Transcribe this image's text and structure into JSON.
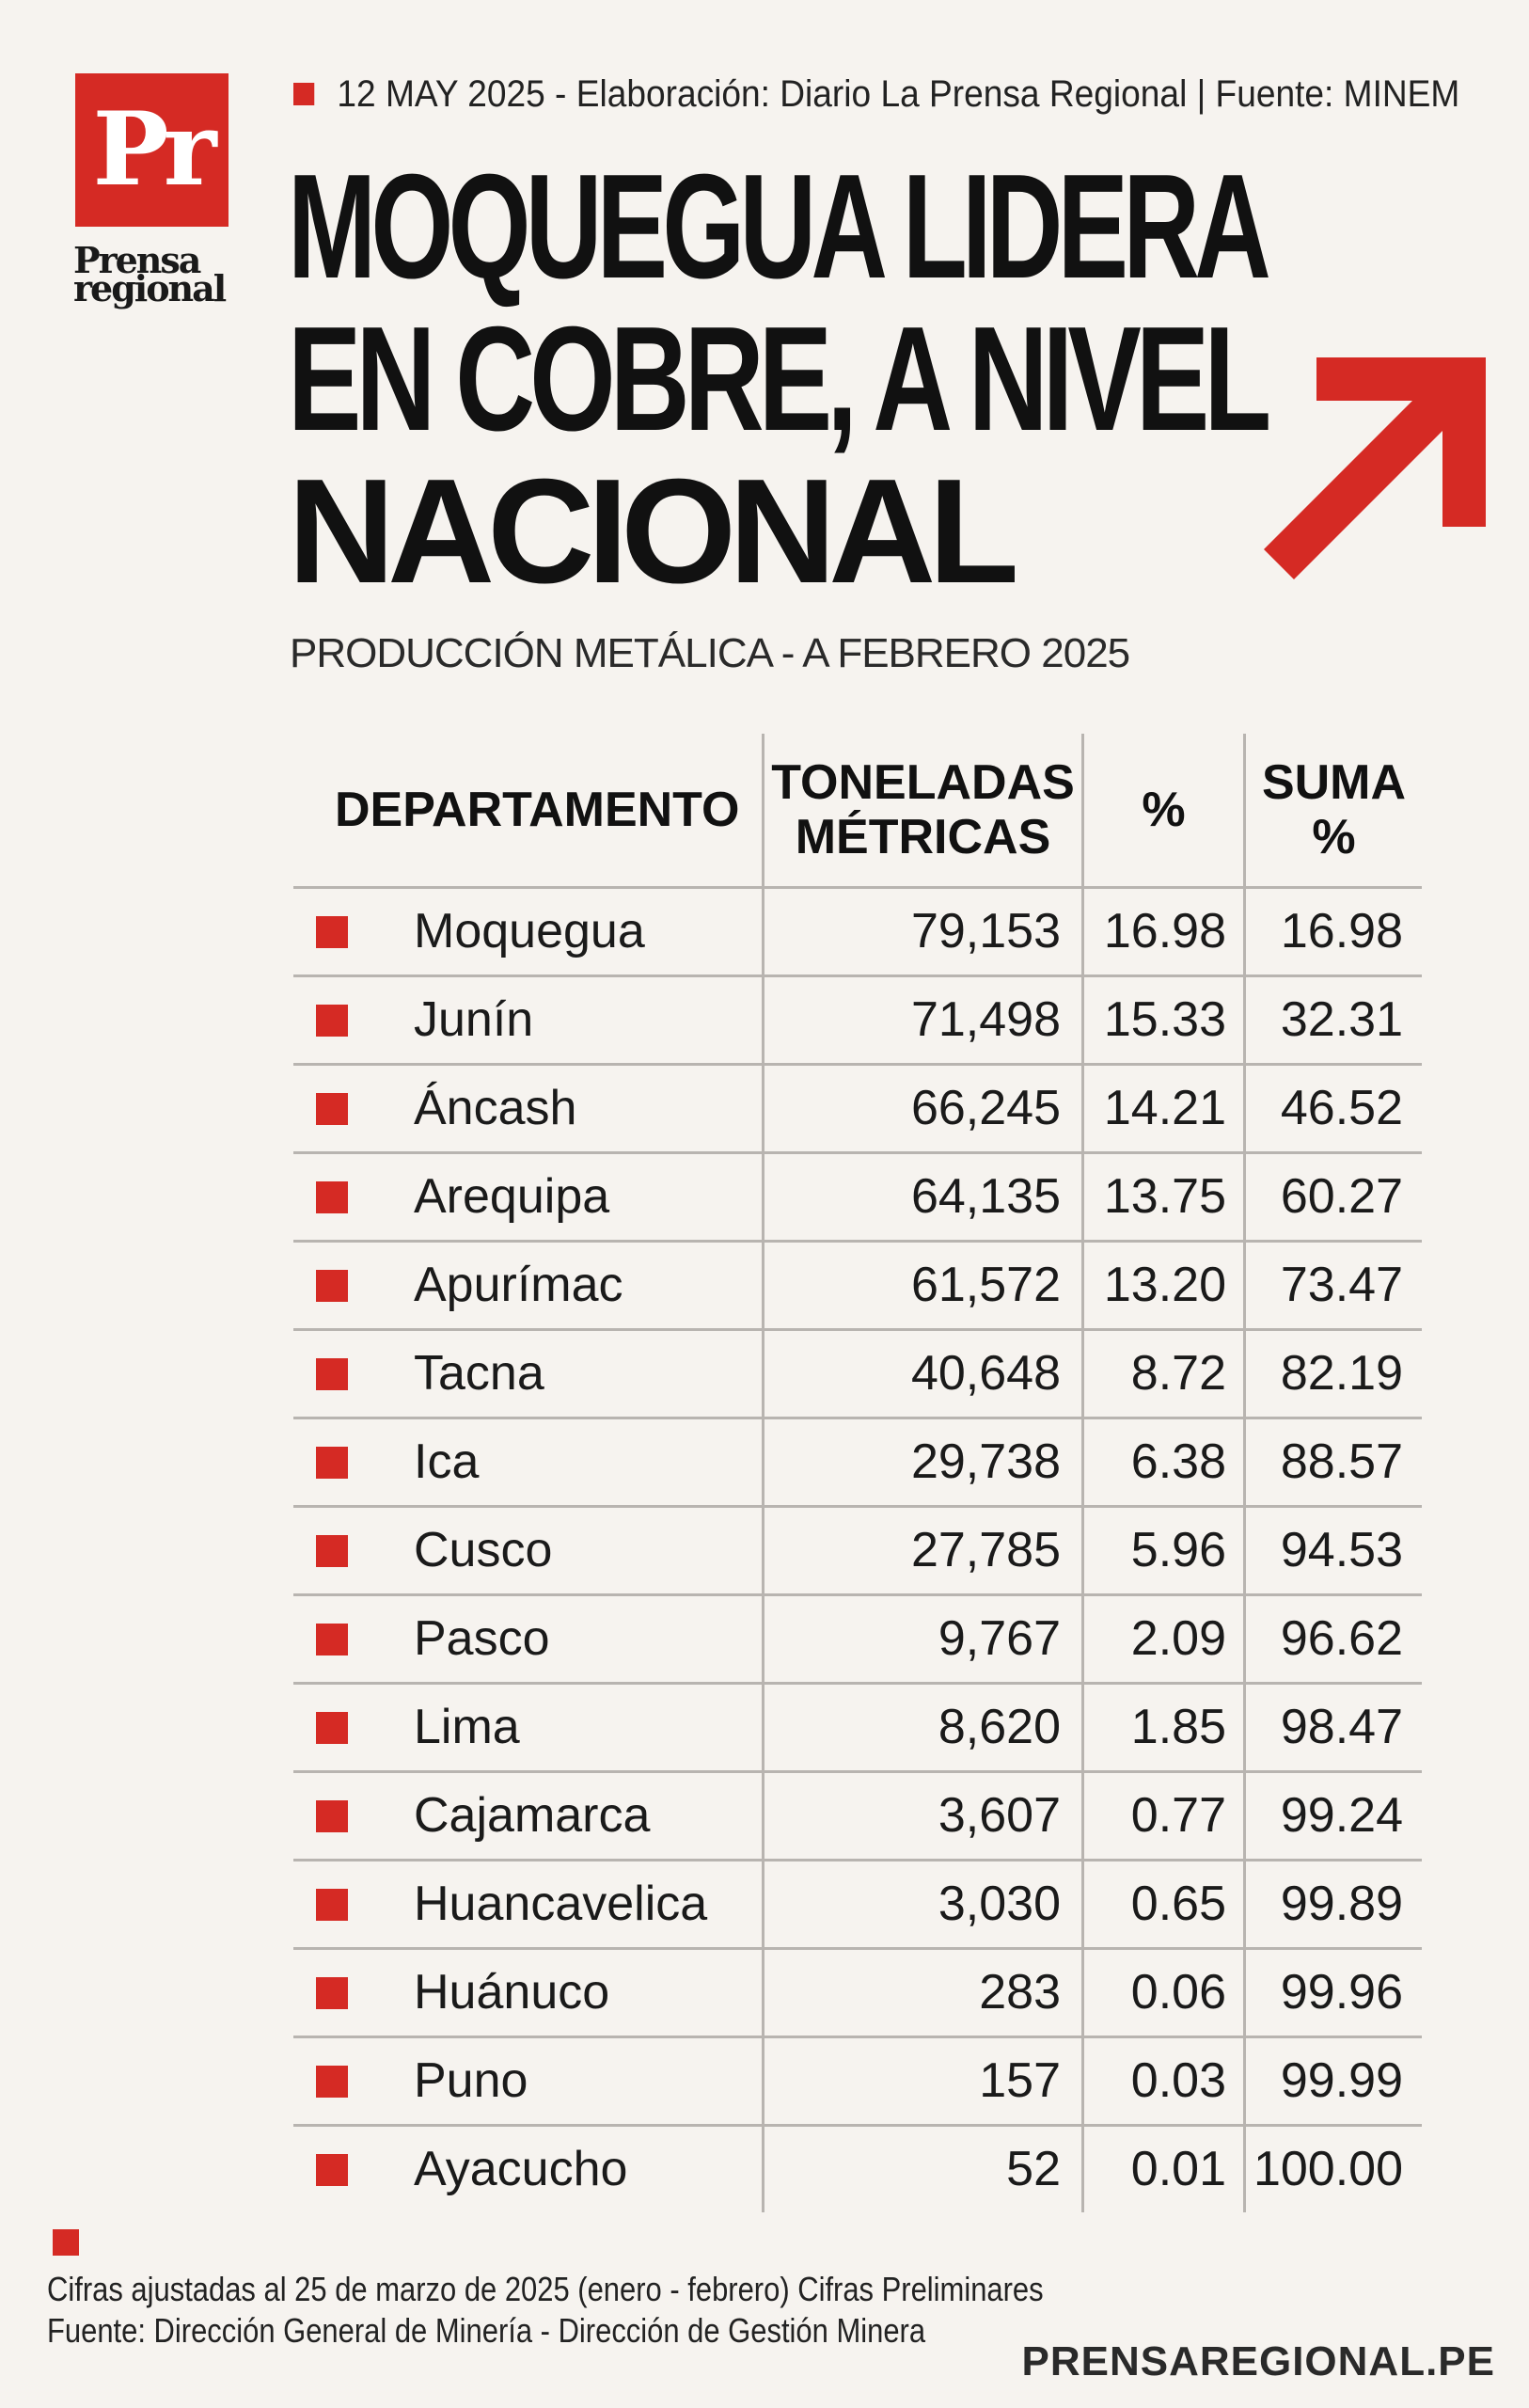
{
  "logo": {
    "letters": "Pr",
    "name_line1": "Prensa",
    "name_line2": "regional"
  },
  "topline": "12 MAY 2025 -  Elaboración: Diario La Prensa Regional | Fuente: MINEM",
  "headline": [
    "MOQUEGUA LIDERA",
    "EN COBRE, A NIVEL",
    "NACIONAL"
  ],
  "subtitle": "PRODUCCIÓN METÁLICA - A FEBRERO 2025",
  "colors": {
    "accent": "#d52a24",
    "grid": "#b8b4b0",
    "background": "#f6f3ef"
  },
  "icons": {
    "arrow": "up-right-arrow-icon",
    "bullet": "red-square-icon"
  },
  "chart_data": {
    "type": "table",
    "columns": [
      "DEPARTAMENTO",
      "TONELADAS MÉTRICAS",
      "%",
      "SUMA %"
    ],
    "header_lines": {
      "departamento": [
        "DEPARTAMENTO"
      ],
      "toneladas": [
        "TONELADAS",
        "MÉTRICAS"
      ],
      "pct": [
        "%"
      ],
      "suma": [
        "SUMA",
        "%"
      ]
    },
    "rows": [
      {
        "departamento": "Moquegua",
        "toneladas": "79,153",
        "pct": "16.98",
        "suma": "16.98"
      },
      {
        "departamento": "Junín",
        "toneladas": "71,498",
        "pct": "15.33",
        "suma": "32.31"
      },
      {
        "departamento": "Áncash",
        "toneladas": "66,245",
        "pct": "14.21",
        "suma": "46.52"
      },
      {
        "departamento": "Arequipa",
        "toneladas": "64,135",
        "pct": "13.75",
        "suma": "60.27"
      },
      {
        "departamento": "Apurímac",
        "toneladas": "61,572",
        "pct": "13.20",
        "suma": "73.47"
      },
      {
        "departamento": "Tacna",
        "toneladas": "40,648",
        "pct": "8.72",
        "suma": "82.19"
      },
      {
        "departamento": "Ica",
        "toneladas": "29,738",
        "pct": "6.38",
        "suma": "88.57"
      },
      {
        "departamento": "Cusco",
        "toneladas": "27,785",
        "pct": "5.96",
        "suma": "94.53"
      },
      {
        "departamento": "Pasco",
        "toneladas": "9,767",
        "pct": "2.09",
        "suma": "96.62"
      },
      {
        "departamento": "Lima",
        "toneladas": "8,620",
        "pct": "1.85",
        "suma": "98.47"
      },
      {
        "departamento": "Cajamarca",
        "toneladas": "3,607",
        "pct": "0.77",
        "suma": "99.24"
      },
      {
        "departamento": "Huancavelica",
        "toneladas": "3,030",
        "pct": "0.65",
        "suma": "99.89"
      },
      {
        "departamento": "Huánuco",
        "toneladas": "283",
        "pct": "0.06",
        "suma": "99.96"
      },
      {
        "departamento": "Puno",
        "toneladas": "157",
        "pct": "0.03",
        "suma": "99.99"
      },
      {
        "departamento": "Ayacucho",
        "toneladas": "52",
        "pct": "0.01",
        "suma": "100.00"
      }
    ]
  },
  "footnotes": [
    "Cifras ajustadas al 25 de marzo de 2025 (enero - febrero) Cifras Preliminares",
    "Fuente: Dirección General de Minería - Dirección de Gestión Minera"
  ],
  "site": "PRENSAREGIONAL.PE"
}
